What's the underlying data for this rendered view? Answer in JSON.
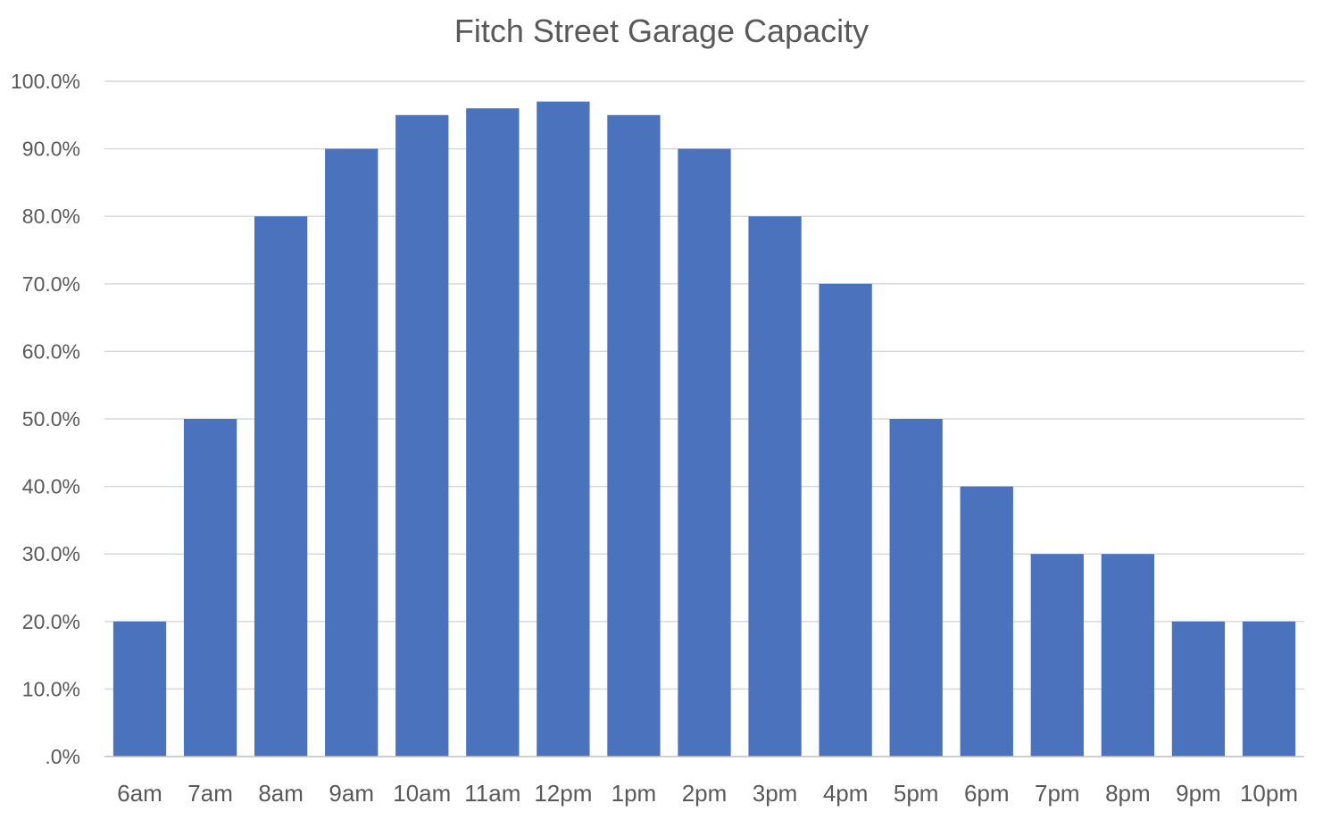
{
  "chart_data": {
    "type": "bar",
    "title": "Fitch Street Garage Capacity",
    "xlabel": "",
    "ylabel": "",
    "categories": [
      "6am",
      "7am",
      "8am",
      "9am",
      "10am",
      "11am",
      "12pm",
      "1pm",
      "2pm",
      "3pm",
      "4pm",
      "5pm",
      "6pm",
      "7pm",
      "8pm",
      "9pm",
      "10pm"
    ],
    "values": [
      20,
      50,
      80,
      90,
      95,
      96,
      97,
      95,
      90,
      80,
      70,
      50,
      40,
      30,
      30,
      20,
      20
    ],
    "ylim": [
      0,
      100
    ],
    "yticks": [
      0,
      10,
      20,
      30,
      40,
      50,
      60,
      70,
      80,
      90,
      100
    ],
    "ytick_labels": [
      ".0%",
      "10.0%",
      "20.0%",
      "30.0%",
      "40.0%",
      "50.0%",
      "60.0%",
      "70.0%",
      "80.0%",
      "90.0%",
      "100.0%"
    ],
    "grid": true,
    "legend": "none",
    "colors": {
      "bar": "#4a72bd",
      "grid": "#d9d9d9",
      "axis": "#bfbfbf",
      "text": "#595959"
    }
  }
}
